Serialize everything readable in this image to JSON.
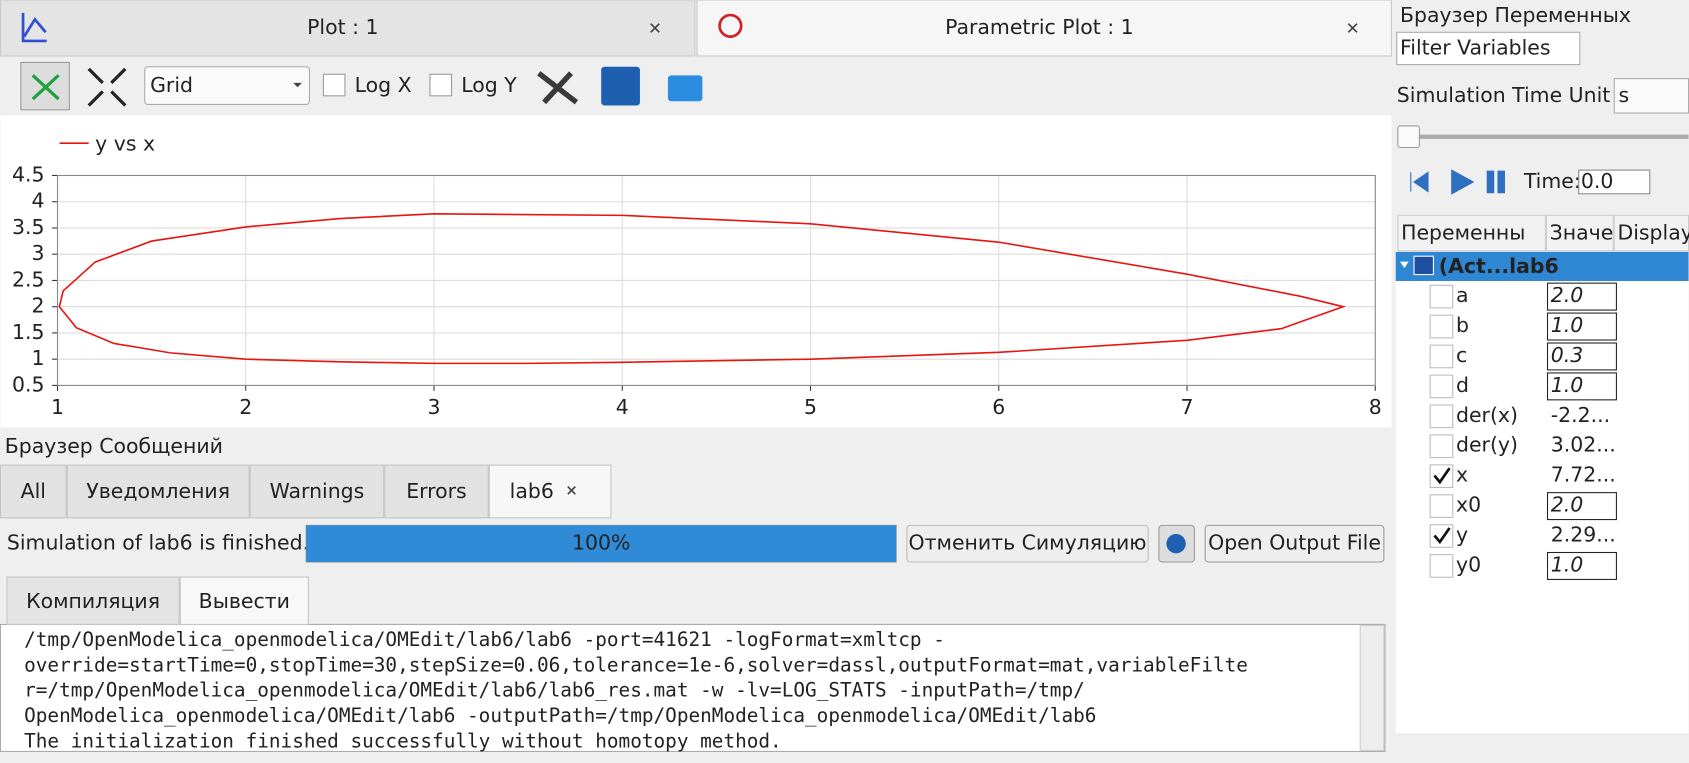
{
  "tabs": [
    "Plot : 1",
    "Parametric Plot : 1"
  ],
  "toolbar": {
    "grid_mode": "Grid",
    "log_x": "Log X",
    "log_y": "Log Y"
  },
  "chart_data": {
    "type": "line",
    "x": [
      2.0,
      2.5,
      3.0,
      3.5,
      4.0,
      5.0,
      6.0,
      7.0,
      7.5,
      7.83,
      7.6,
      7.0,
      6.0,
      5.0,
      4.0,
      3.0,
      2.5,
      2.0,
      1.5,
      1.2,
      1.03,
      1.01,
      1.1,
      1.3,
      1.6,
      2.0
    ],
    "series": [
      {
        "name": "y vs x",
        "color": "#e8140f",
        "values": [
          1.0,
          0.95,
          0.92,
          0.92,
          0.94,
          1.0,
          1.13,
          1.36,
          1.58,
          2.0,
          2.2,
          2.62,
          3.23,
          3.58,
          3.74,
          3.77,
          3.68,
          3.52,
          3.25,
          2.85,
          2.3,
          2.0,
          1.6,
          1.3,
          1.12,
          1.0
        ]
      }
    ],
    "xlim": [
      1,
      8
    ],
    "ylim": [
      0.5,
      4.5
    ],
    "xticks": [
      1,
      2,
      3,
      4,
      5,
      6,
      7,
      8
    ],
    "yticks": [
      0.5,
      1,
      1.5,
      2,
      2.5,
      3,
      3.5,
      4,
      4.5
    ],
    "grid": true
  },
  "messages": {
    "title": "Браузер Сообщений",
    "tabs": [
      "All",
      "Уведомления",
      "Warnings",
      "Errors",
      "lab6"
    ],
    "status": "Simulation of lab6 is finished.",
    "progress": 100,
    "progress_label": "100%",
    "cancel": "Отменить Симуляцию",
    "open_output": "Open Output File",
    "subtabs": [
      "Компиляция",
      "Вывести"
    ],
    "output": [
      {
        "text": "/tmp/OpenModelica_openmodelica/OMEdit/lab6/lab6 -port=41621 -logFormat=xmltcp -",
        "color": "#1a1ad6"
      },
      {
        "text": "override=startTime=0,stopTime=30,stepSize=0.06,tolerance=1e-6,solver=dassl,outputFormat=mat,variableFilte",
        "color": "#1a1ad6"
      },
      {
        "text": "r=/tmp/OpenModelica_openmodelica/OMEdit/lab6/lab6_res.mat -w -lv=LOG_STATS -inputPath=/tmp/",
        "color": "#1a1ad6"
      },
      {
        "text": "OpenModelica_openmodelica/OMEdit/lab6 -outputPath=/tmp/OpenModelica_openmodelica/OMEdit/lab6",
        "color": "#1a1ad6"
      },
      {
        "text": "The initialization finished successfully without homotopy method.",
        "color": "#222222"
      }
    ]
  },
  "variables": {
    "title": "Браузер Переменных",
    "filter": "Filter Variables",
    "time_unit_label": "Simulation Time Unit",
    "time_unit": "s",
    "time_label": "Time:",
    "time": "0.0",
    "columns": [
      "Переменны",
      "Значе",
      "Display"
    ],
    "root": "(Act...lab6",
    "rows": [
      {
        "name": "a",
        "value": "2.0",
        "checked": false,
        "editable": true
      },
      {
        "name": "b",
        "value": "1.0",
        "checked": false,
        "editable": true
      },
      {
        "name": "c",
        "value": "0.3",
        "checked": false,
        "editable": true
      },
      {
        "name": "d",
        "value": "1.0",
        "checked": false,
        "editable": true
      },
      {
        "name": "der(x)",
        "value": "-2.2...",
        "checked": false,
        "editable": false
      },
      {
        "name": "der(y)",
        "value": "3.02...",
        "checked": false,
        "editable": false
      },
      {
        "name": "x",
        "value": "7.72...",
        "checked": true,
        "editable": false
      },
      {
        "name": "x0",
        "value": "2.0",
        "checked": false,
        "editable": true
      },
      {
        "name": "y",
        "value": "2.29...",
        "checked": true,
        "editable": false
      },
      {
        "name": "y0",
        "value": "1.0",
        "checked": false,
        "editable": true
      }
    ]
  }
}
